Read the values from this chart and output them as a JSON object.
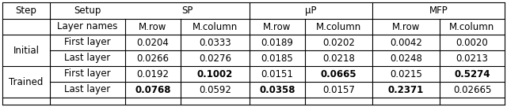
{
  "rows": [
    [
      "Initial",
      "First layer",
      "0.0204",
      "0.0333",
      "0.0189",
      "0.0202",
      "0.0042",
      "0.0020"
    ],
    [
      "Initial",
      "Last layer",
      "0.0266",
      "0.0276",
      "0.0185",
      "0.0218",
      "0.0248",
      "0.0213"
    ],
    [
      "Trained",
      "First layer",
      "0.0192",
      "0.1002",
      "0.0151",
      "0.0665",
      "0.0215",
      "0.5274"
    ],
    [
      "Trained",
      "Last layer",
      "0.0768",
      "0.0592",
      "0.0358",
      "0.0157",
      "0.2371",
      "0.02665"
    ]
  ],
  "bold_data": {
    "2": [
      3,
      5,
      7
    ],
    "3": [
      2,
      4,
      6
    ]
  },
  "background_color": "#ffffff",
  "line_color": "#000000",
  "font_size": 8.5
}
